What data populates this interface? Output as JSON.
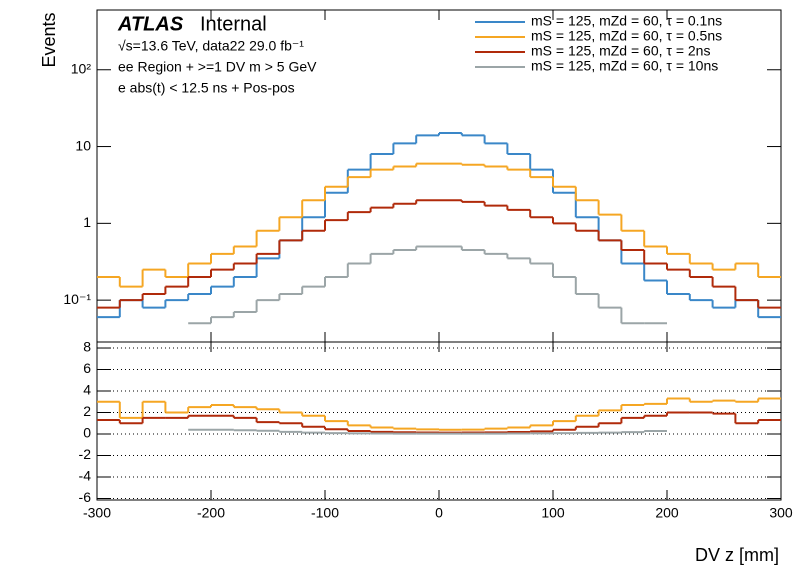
{
  "chart_data": [
    {
      "type": "histogram",
      "ylabel": "Events",
      "log_y": true,
      "annotations": [
        "ATLAS",
        "Internal",
        "√s=13.6 TeV, data22 29.0 fb⁻¹",
        "ee Region + >=1 DV m > 5 GeV",
        "e abs(t) < 12.5 ns + Pos-pos"
      ],
      "legend": "top-right",
      "bins": [
        -300,
        -280,
        -260,
        -240,
        -220,
        -200,
        -180,
        -160,
        -140,
        -120,
        -100,
        -80,
        -60,
        -40,
        -20,
        0,
        20,
        40,
        60,
        80,
        100,
        120,
        140,
        160,
        180,
        200,
        220,
        240,
        260,
        280,
        300
      ],
      "xlim": [
        -300,
        300
      ],
      "xticks": [
        -300,
        -200,
        -100,
        0,
        100,
        200,
        300
      ],
      "ylim": [
        0.0285,
        600
      ],
      "yticks": [
        {
          "value": 0.1,
          "label": "10⁻¹"
        },
        1,
        10,
        {
          "value": 100,
          "label": "10²"
        }
      ],
      "series": [
        {
          "name": "mS = 125, mZd = 60, τ = 0.1ns",
          "color": "#3a87c8",
          "values": [
            0.06,
            0.1,
            0.08,
            0.1,
            0.12,
            0.15,
            0.2,
            0.35,
            0.6,
            1.2,
            2.5,
            5,
            8,
            11,
            14,
            15,
            14,
            11,
            8,
            5,
            2.5,
            1.2,
            0.6,
            0.3,
            0.18,
            0.12,
            0.1,
            0.08,
            0.1,
            0.06
          ]
        },
        {
          "name": "mS = 125, mZd = 60, τ = 0.5ns",
          "color": "#f5a623",
          "values": [
            0.2,
            0.15,
            0.25,
            0.2,
            0.3,
            0.4,
            0.5,
            0.8,
            1.2,
            2,
            3,
            4,
            5,
            5.5,
            6,
            6,
            5.8,
            5.5,
            5,
            4,
            3,
            2,
            1.3,
            0.8,
            0.5,
            0.4,
            0.3,
            0.25,
            0.3,
            0.2
          ]
        },
        {
          "name": "mS = 125, mZd = 60, τ = 2ns",
          "color": "#b02a0a",
          "values": [
            0.08,
            0.1,
            0.12,
            0.15,
            0.2,
            0.25,
            0.3,
            0.4,
            0.6,
            0.8,
            1.1,
            1.4,
            1.6,
            1.8,
            2,
            2,
            1.9,
            1.7,
            1.5,
            1.2,
            1,
            0.8,
            0.6,
            0.45,
            0.3,
            0.25,
            0.2,
            0.15,
            0.1,
            0.08
          ]
        },
        {
          "name": "mS = 125, mZd = 60, τ = 10ns",
          "color": "#9ba5a7",
          "values": [
            null,
            null,
            null,
            null,
            0.05,
            0.06,
            0.07,
            0.1,
            0.12,
            0.15,
            0.2,
            0.3,
            0.4,
            0.45,
            0.5,
            0.5,
            0.45,
            0.4,
            0.35,
            0.3,
            0.2,
            0.12,
            0.08,
            0.05,
            0.05,
            null,
            null,
            null,
            null,
            null
          ]
        }
      ]
    },
    {
      "type": "histogram",
      "xlabel": "DV z [mm]",
      "grid": true,
      "bins": [
        -300,
        -280,
        -260,
        -240,
        -220,
        -200,
        -180,
        -160,
        -140,
        -120,
        -100,
        -80,
        -60,
        -40,
        -20,
        0,
        20,
        40,
        60,
        80,
        100,
        120,
        140,
        160,
        180,
        200,
        220,
        240,
        260,
        280,
        300
      ],
      "xlim": [
        -300,
        300
      ],
      "xticks": [
        -300,
        -200,
        -100,
        0,
        100,
        200,
        300
      ],
      "ylim": [
        -6.14,
        8.56
      ],
      "yticks": [
        -6,
        -4,
        -2,
        0,
        2,
        4,
        6,
        8
      ],
      "series": [
        {
          "color": "#f5a623",
          "values": [
            3,
            1.5,
            3,
            2,
            2.5,
            2.7,
            2.5,
            2.3,
            2,
            1.7,
            1.2,
            0.8,
            0.6,
            0.5,
            0.43,
            0.4,
            0.41,
            0.5,
            0.6,
            0.8,
            1.2,
            1.7,
            2.2,
            2.7,
            2.8,
            3.3,
            3,
            3.1,
            3,
            3.3
          ]
        },
        {
          "color": "#b02a0a",
          "values": [
            1.3,
            1,
            1.5,
            1.5,
            1.7,
            1.7,
            1.5,
            1.1,
            1,
            0.67,
            0.44,
            0.28,
            0.2,
            0.16,
            0.14,
            0.13,
            0.14,
            0.15,
            0.19,
            0.24,
            0.4,
            0.67,
            1,
            1.5,
            1.7,
            2,
            2,
            1.9,
            1,
            1.3
          ]
        },
        {
          "color": "#9ba5a7",
          "values": [
            null,
            null,
            null,
            null,
            0.4,
            0.4,
            0.35,
            0.3,
            0.2,
            0.13,
            0.08,
            0.06,
            0.05,
            0.04,
            0.036,
            0.033,
            0.032,
            0.036,
            0.044,
            0.06,
            0.08,
            0.1,
            0.13,
            0.17,
            0.28,
            null,
            null,
            null,
            null,
            null
          ]
        }
      ]
    }
  ]
}
